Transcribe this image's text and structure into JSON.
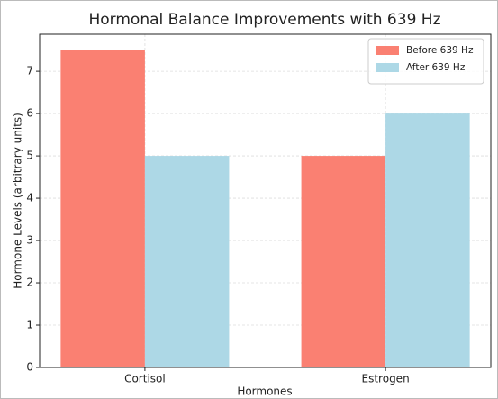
{
  "chart_data": {
    "type": "bar",
    "title": "Hormonal Balance Improvements with 639 Hz",
    "x_label": "Hormones",
    "y_label": "Hormone Levels (arbitrary units)",
    "categories": [
      "Cortisol",
      "Estrogen"
    ],
    "series": [
      {
        "name": "Before 639 Hz",
        "color": "#fa8072",
        "values": [
          7.5,
          5
        ]
      },
      {
        "name": "After 639 Hz",
        "color": "#add8e6",
        "values": [
          5,
          6
        ]
      }
    ],
    "ylim": [
      0,
      7.875
    ],
    "yticks": [
      0,
      1,
      2,
      3,
      4,
      5,
      6,
      7
    ],
    "grid": true,
    "legend": "upper right"
  }
}
